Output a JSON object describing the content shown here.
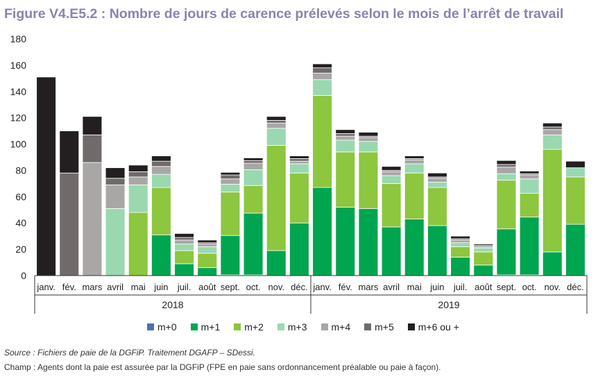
{
  "title": "Figure V4.E5.2 : Nombre de jours de carence prélevés selon le mois de l’arrêt de travail",
  "source": "Source : Fichiers de paie de la DGFiP. Traitement DGAFP – SDessi.",
  "scope": "Champ : Agents dont la paie est assurée par la DGFiP (FPE en paie sans ordonnancement préalable ou paie à façon).",
  "chart_data": {
    "type": "bar",
    "stacked": true,
    "ylim": [
      0,
      180
    ],
    "yticks": [
      0,
      20,
      40,
      60,
      80,
      100,
      120,
      140,
      160,
      180
    ],
    "grid": false,
    "legend_position": "bottom",
    "categories": [
      "janv.",
      "fév.",
      "mars",
      "avril",
      "mai",
      "juin",
      "juil.",
      "août",
      "sept.",
      "oct.",
      "nov.",
      "déc.",
      "janv.",
      "fév.",
      "mars",
      "avril",
      "mai",
      "juin",
      "juil.",
      "août",
      "sept.",
      "oct.",
      "nov.",
      "déc."
    ],
    "groups": [
      {
        "label": "2018",
        "start": 0,
        "count": 12
      },
      {
        "label": "2019",
        "start": 12,
        "count": 12
      }
    ],
    "series": [
      {
        "name": "m+0",
        "color": "#4a72b8",
        "values": [
          0,
          0,
          0,
          0,
          0,
          0,
          0,
          0,
          0.5,
          0.5,
          0,
          0,
          0,
          0,
          0,
          0,
          0,
          0,
          0,
          0,
          0.5,
          0.5,
          0,
          0
        ]
      },
      {
        "name": "m+1",
        "color": "#00a550",
        "values": [
          0,
          0,
          0,
          0,
          0,
          31,
          9,
          6,
          30,
          47,
          19,
          40,
          67,
          52,
          51,
          37,
          43,
          38,
          14,
          8,
          35,
          44,
          18,
          39
        ]
      },
      {
        "name": "m+2",
        "color": "#8dc63f",
        "values": [
          0,
          0,
          0,
          0,
          48,
          36,
          10,
          11,
          33,
          21,
          80,
          38,
          70,
          42,
          43,
          33,
          35,
          29,
          8,
          10,
          37,
          18,
          78,
          36
        ]
      },
      {
        "name": "m+3",
        "color": "#9ad8b0",
        "values": [
          0,
          0,
          0,
          51,
          21,
          10,
          5,
          5,
          6,
          12,
          13,
          7,
          12,
          9,
          8,
          6,
          7,
          4,
          3,
          3,
          5,
          11,
          11,
          7
        ]
      },
      {
        "name": "m+4",
        "color": "#a9a6a6",
        "values": [
          0,
          0,
          86,
          18,
          6,
          6,
          3,
          2,
          4,
          5,
          4,
          2,
          5,
          3,
          3,
          3,
          3,
          3,
          2,
          1,
          5,
          3,
          4,
          0
        ]
      },
      {
        "name": "m+5",
        "color": "#706a6a",
        "values": [
          0,
          78,
          21,
          5,
          4,
          4,
          2,
          1,
          3,
          2,
          2,
          2,
          4,
          2,
          1,
          1,
          1,
          1,
          1,
          1,
          2,
          1,
          2,
          0
        ]
      },
      {
        "name": "m+6 ou +",
        "color": "#231f20",
        "values": [
          151,
          32,
          14,
          8,
          5,
          4,
          3,
          2,
          2,
          2,
          3,
          2,
          3,
          3,
          3,
          3,
          2,
          3,
          2,
          1,
          3,
          2,
          3,
          5
        ]
      }
    ]
  }
}
